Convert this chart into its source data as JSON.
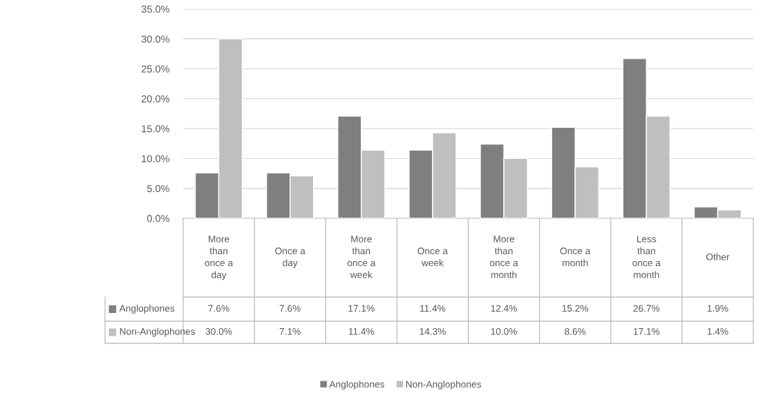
{
  "chart_data": {
    "type": "bar",
    "categories": [
      "More than once a day",
      "Once a day",
      "More than once a week",
      "Once a week",
      "More than once a month",
      "Once a month",
      "Less than once a month",
      "Other"
    ],
    "series": [
      {
        "name": "Anglophones",
        "color": "#7f7f7f",
        "values": [
          7.6,
          7.6,
          17.1,
          11.4,
          12.4,
          15.2,
          26.7,
          1.9
        ],
        "value_labels": [
          "7.6%",
          "7.6%",
          "17.1%",
          "11.4%",
          "12.4%",
          "15.2%",
          "26.7%",
          "1.9%"
        ]
      },
      {
        "name": "Non-Anglophones",
        "color": "#bfbfbf",
        "values": [
          30.0,
          7.1,
          11.4,
          14.3,
          10.0,
          8.6,
          17.1,
          1.4
        ],
        "value_labels": [
          "30.0%",
          "7.1%",
          "11.4%",
          "14.3%",
          "10.0%",
          "8.6%",
          "17.1%",
          "1.4%"
        ]
      }
    ],
    "ylim": [
      0,
      35
    ],
    "yticks": [
      {
        "value": 0,
        "label": "0.0%"
      },
      {
        "value": 5,
        "label": "5.0%"
      },
      {
        "value": 10,
        "label": "10.0%"
      },
      {
        "value": 15,
        "label": "15.0%"
      },
      {
        "value": 20,
        "label": "20.0%"
      },
      {
        "value": 25,
        "label": "25.0%"
      },
      {
        "value": 30,
        "label": "30.0%"
      },
      {
        "value": 35,
        "label": "35.0%"
      }
    ],
    "grid": "y",
    "legend": "bottom"
  }
}
